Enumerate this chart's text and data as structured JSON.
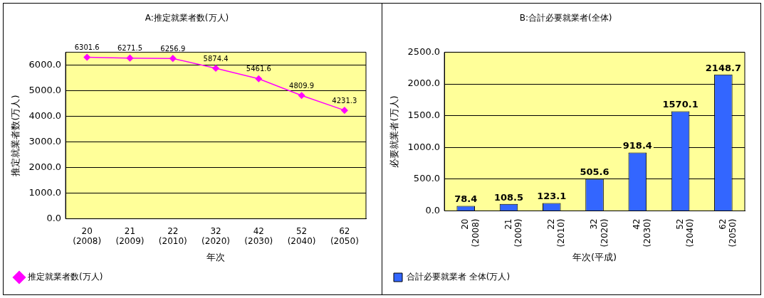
{
  "chart_data": [
    {
      "type": "line",
      "title": "A:推定就業者数(万人)",
      "xlabel": "年次",
      "ylabel": "推定就業者数(万人)",
      "categories": [
        "20\n(2008)",
        "21\n(2009)",
        "22\n(2010)",
        "32\n(2020)",
        "42\n(2030)",
        "52\n(2040)",
        "62\n(2050)"
      ],
      "series": [
        {
          "name": "推定就業者数(万人)",
          "color": "#ff00ff",
          "values": [
            6301.6,
            6271.5,
            6256.9,
            5874.4,
            5461.6,
            4809.9,
            4231.3
          ]
        }
      ],
      "ylim": [
        0,
        6500
      ],
      "yticks": [
        {
          "value": 0,
          "label": "0.0"
        },
        {
          "value": 1000,
          "label": "1000.0"
        },
        {
          "value": 2000,
          "label": "2000.0"
        },
        {
          "value": 3000,
          "label": "3000.0"
        },
        {
          "value": 4000,
          "label": "4000.0"
        },
        {
          "value": 5000,
          "label": "5000.0"
        },
        {
          "value": 6000,
          "label": "6000.0"
        }
      ],
      "grid": "y",
      "legend": "bottom left",
      "marker": "diamond",
      "line_style": "solid",
      "data_labels": true
    },
    {
      "type": "bar",
      "title": "B:合計必要就業者(全体)",
      "xlabel": "年次(平成)",
      "ylabel": "必要就業者(万人)",
      "categories": [
        "20\n(2008)",
        "21\n(2009)",
        "22\n(2010)",
        "32\n(2020)",
        "42\n(2030)",
        "52\n(2040)",
        "62\n(2050)"
      ],
      "series": [
        {
          "name": "合計必要就業者 全体(万人)",
          "color": "#3366ff",
          "values": [
            78.4,
            108.5,
            123.1,
            505.6,
            918.4,
            1570.1,
            2148.7
          ]
        }
      ],
      "ylim": [
        0,
        2500
      ],
      "yticks": [
        {
          "value": 0,
          "label": "0.0"
        },
        {
          "value": 500,
          "label": "500.0"
        },
        {
          "value": 1000,
          "label": "1000.0"
        },
        {
          "value": 1500,
          "label": "1500.0"
        },
        {
          "value": 2000,
          "label": "2000.0"
        },
        {
          "value": 2500,
          "label": "2500.0"
        }
      ],
      "grid": "y",
      "legend": "bottom left",
      "data_labels": true
    }
  ]
}
